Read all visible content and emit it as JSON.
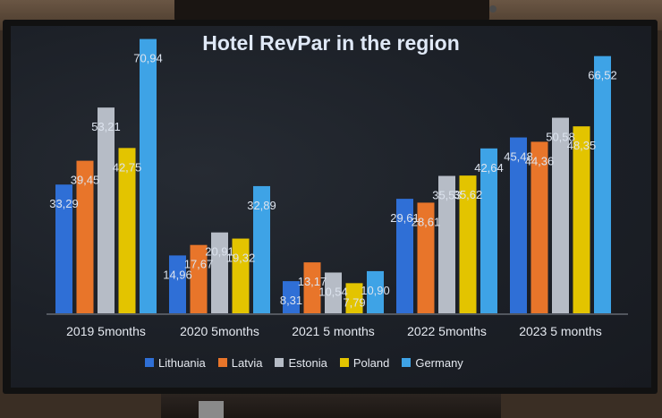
{
  "chart_data": {
    "type": "bar",
    "title": "Hotel RevPar in the region",
    "categories": [
      "2019 5months",
      "2020 5months",
      "2021 5 months",
      "2022 5months",
      "2023 5 months"
    ],
    "ylim": [
      0,
      72
    ],
    "grid": false,
    "legend_position": "bottom",
    "series": [
      {
        "name": "Lithuania",
        "color": "#2f6fd6",
        "values": [
          33.29,
          14.96,
          8.31,
          29.61,
          45.48
        ],
        "labels": [
          "33,29",
          "14,96",
          "8,31",
          "29,61",
          "45,48"
        ]
      },
      {
        "name": "Latvia",
        "color": "#e8752a",
        "values": [
          39.45,
          17.67,
          13.17,
          28.61,
          44.36
        ],
        "labels": [
          "39,45",
          "17,67",
          "13,17",
          "28,61",
          "44,36"
        ]
      },
      {
        "name": "Estonia",
        "color": "#b6bcc6",
        "values": [
          53.21,
          20.91,
          10.54,
          35.53,
          50.58
        ],
        "labels": [
          "53,21",
          "20,91",
          "10,54",
          "35,53",
          "50,58"
        ]
      },
      {
        "name": "Poland",
        "color": "#e3c400",
        "values": [
          42.75,
          19.32,
          7.79,
          35.62,
          48.35
        ],
        "labels": [
          "42,75",
          "19,32",
          "7,79",
          "35,62",
          "48,35"
        ]
      },
      {
        "name": "Germany",
        "color": "#3ea3e6",
        "values": [
          70.94,
          32.89,
          10.9,
          42.64,
          66.52
        ],
        "labels": [
          "70,94",
          "32,89",
          "10,90",
          "42,64",
          "66,52"
        ]
      }
    ]
  }
}
